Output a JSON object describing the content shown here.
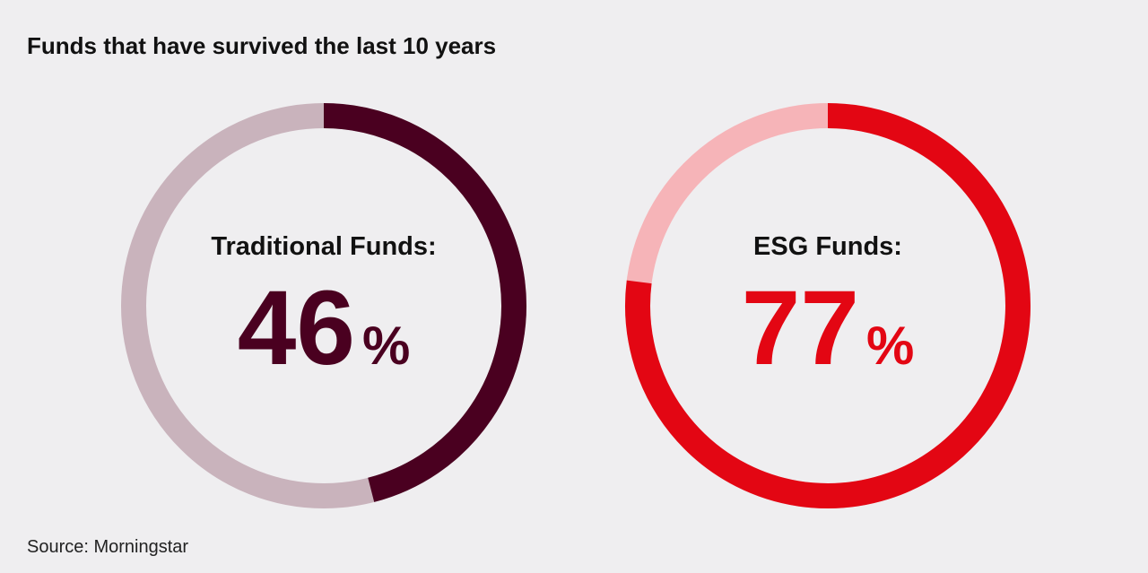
{
  "title": "Funds that have survived the last 10 years",
  "source": "Source: Morningstar",
  "chart_data": [
    {
      "type": "donut",
      "title": "Traditional Funds:",
      "values": [
        46
      ],
      "value_labels": [
        "46%"
      ],
      "ylim": [
        0,
        100
      ],
      "color": "#4a0020",
      "track_color": "#c9b3bc"
    },
    {
      "type": "donut",
      "title": "ESG Funds:",
      "values": [
        77
      ],
      "value_labels": [
        "77%"
      ],
      "ylim": [
        0,
        100
      ],
      "color": "#e30613",
      "track_color": "#f6b4b8"
    }
  ]
}
